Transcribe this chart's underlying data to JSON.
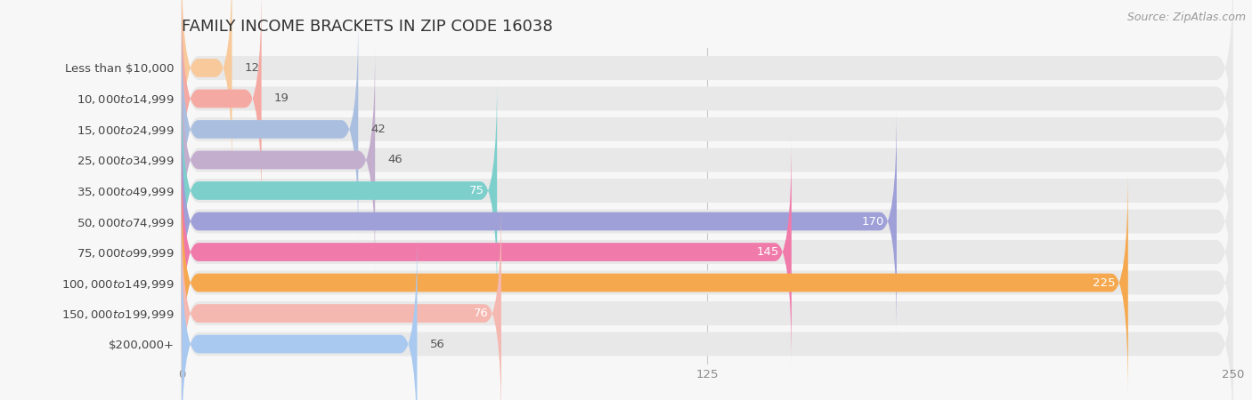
{
  "title": "FAMILY INCOME BRACKETS IN ZIP CODE 16038",
  "source": "Source: ZipAtlas.com",
  "categories": [
    "Less than $10,000",
    "$10,000 to $14,999",
    "$15,000 to $24,999",
    "$25,000 to $34,999",
    "$35,000 to $49,999",
    "$50,000 to $74,999",
    "$75,000 to $99,999",
    "$100,000 to $149,999",
    "$150,000 to $199,999",
    "$200,000+"
  ],
  "values": [
    12,
    19,
    42,
    46,
    75,
    170,
    145,
    225,
    76,
    56
  ],
  "bar_colors": [
    "#f7c99b",
    "#f5a9a3",
    "#aabfe0",
    "#c3aece",
    "#7dcfcc",
    "#9fa0d8",
    "#f07aaa",
    "#f5a84e",
    "#f5b8b0",
    "#a9c9f0"
  ],
  "xlim": [
    0,
    250
  ],
  "xticks": [
    0,
    125,
    250
  ],
  "background_color": "#f7f7f7",
  "bar_bg_color": "#e8e8e8",
  "title_fontsize": 13,
  "label_fontsize": 9.5,
  "value_fontsize": 9.5,
  "source_fontsize": 9,
  "bar_height": 0.6,
  "bg_bar_height": 0.78,
  "value_inside_threshold": 60,
  "inside_value_color": "#ffffff",
  "outside_value_color": "#555555",
  "label_color": "#444444",
  "grid_color": "#cccccc",
  "tick_color": "#888888"
}
